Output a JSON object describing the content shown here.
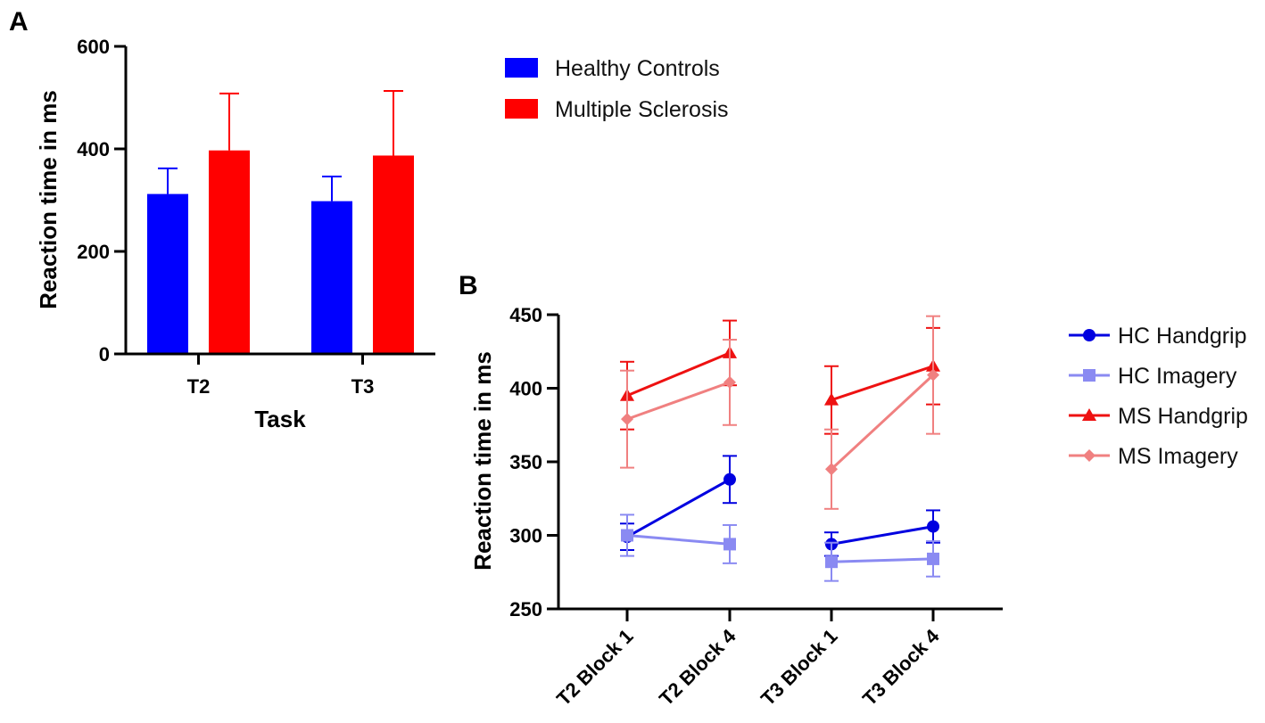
{
  "chart_data": [
    {
      "panel": "A",
      "type": "bar",
      "categories": [
        "T2",
        "T3"
      ],
      "series": [
        {
          "name": "Healthy Controls",
          "color": "#0000ff",
          "values": [
            312,
            298
          ],
          "error": [
            50,
            48
          ]
        },
        {
          "name": "Multiple Sclerosis",
          "color": "#ff0000",
          "values": [
            397,
            387
          ],
          "error": [
            111,
            126
          ]
        }
      ],
      "xlabel": "Task",
      "ylabel": "Reaction time in ms",
      "ylim": [
        0,
        600
      ],
      "yticks": [
        0,
        200,
        400,
        600
      ],
      "legend_position": "right"
    },
    {
      "panel": "B",
      "type": "line",
      "categories": [
        "T2 Block 1",
        "T2 Block 4",
        "T3 Block 1",
        "T3 Block 4"
      ],
      "segments": [
        [
          0,
          1
        ],
        [
          2,
          3
        ]
      ],
      "series": [
        {
          "name": "HC Handgrip",
          "color": "#0000e0",
          "marker": "circle",
          "values": [
            299,
            338,
            294,
            306
          ],
          "error": [
            9,
            16,
            8,
            11
          ]
        },
        {
          "name": "HC Imagery",
          "color": "#8a8af2",
          "marker": "square",
          "values": [
            300,
            294,
            282,
            284
          ],
          "error": [
            14,
            13,
            13,
            12
          ]
        },
        {
          "name": "MS Handgrip",
          "color": "#ee1111",
          "marker": "triangle",
          "values": [
            395,
            424,
            392,
            415
          ],
          "error": [
            23,
            22,
            23,
            26
          ]
        },
        {
          "name": "MS Imagery",
          "color": "#f08080",
          "marker": "diamond",
          "values": [
            379,
            404,
            345,
            409
          ],
          "error": [
            33,
            29,
            27,
            40
          ]
        }
      ],
      "xlabel": "",
      "ylabel": "Reaction time in ms",
      "ylim": [
        250,
        450
      ],
      "yticks": [
        250,
        300,
        350,
        400,
        450
      ],
      "legend_position": "right"
    }
  ]
}
